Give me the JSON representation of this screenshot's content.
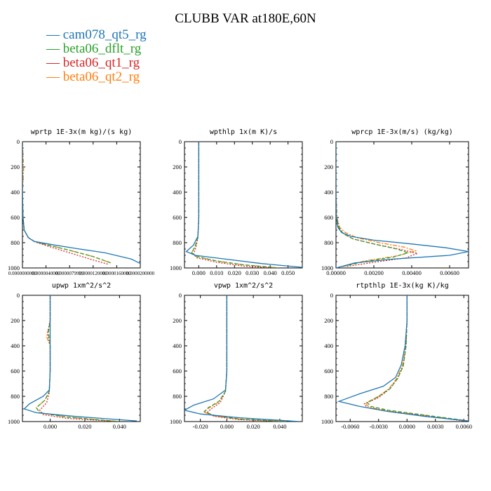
{
  "title": "CLUBB VAR at180E,60N",
  "legend": [
    {
      "name": "cam078_qt5_rg",
      "color": "#1f77b4",
      "dash": "solid"
    },
    {
      "name": "beta06_dflt_rg",
      "color": "#2ca02c",
      "dash": "dashed"
    },
    {
      "name": "beta06_qt1_rg",
      "color": "#d62728",
      "dash": "dotted"
    },
    {
      "name": "beta06_qt2_rg",
      "color": "#ff7f0e",
      "dash": "dashdot"
    }
  ],
  "chart_data": [
    {
      "type": "line",
      "title": "wprtp  1E-3x(m kg)/(s kg)",
      "xlim": [
        0,
        2e-05
      ],
      "ylim": [
        1000,
        0
      ],
      "xticks": [
        "0.0000000000",
        "0.0000040000",
        "0.0000079999",
        "0.0000120000",
        "0.0000160000",
        "0.0000200000"
      ],
      "xtick_values": [
        0,
        4e-06,
        7.9999e-06,
        1.2e-05,
        1.6e-05,
        2e-05
      ],
      "yticks": [
        0,
        200,
        400,
        600,
        800,
        1000
      ],
      "series": [
        {
          "x": [
            0,
            0,
            0,
            1e-07,
            3e-07,
            1e-06,
            2e-06,
            5e-06,
            9e-06,
            1.4e-05,
            1.85e-05,
            2e-05
          ],
          "y": [
            0,
            200,
            400,
            600,
            700,
            760,
            790,
            815,
            845,
            880,
            930,
            965
          ]
        },
        {
          "x": [
            0,
            0,
            0,
            1e-07,
            3e-07,
            1e-06,
            2e-06,
            4e-06,
            8e-06,
            1.2e-05,
            1.5e-05
          ],
          "y": [
            0,
            200,
            400,
            600,
            700,
            760,
            790,
            815,
            860,
            910,
            960
          ]
        },
        {
          "x": [
            0,
            0,
            0,
            1e-07,
            3e-07,
            1e-06,
            2.2e-06,
            4.5e-06,
            8e-06,
            1.15e-05,
            1.45e-05
          ],
          "y": [
            0,
            200,
            400,
            600,
            700,
            760,
            795,
            830,
            880,
            930,
            970
          ]
        },
        {
          "x": [
            0,
            2e-07,
            0,
            1e-07,
            3e-07,
            1e-06,
            2e-06,
            4e-06,
            8e-06,
            1.2e-05,
            1.5e-05
          ],
          "y": [
            0,
            220,
            400,
            600,
            700,
            760,
            790,
            815,
            860,
            910,
            960
          ]
        }
      ]
    },
    {
      "type": "line",
      "title": "wpthlp  1x(m K)/s",
      "xlim": [
        -0.008,
        0.058
      ],
      "ylim": [
        1000,
        0
      ],
      "xticks": [
        "0.000",
        "0.010",
        "0.020",
        "0.030",
        "0.040",
        "0.050"
      ],
      "xtick_values": [
        0,
        0.01,
        0.02,
        0.03,
        0.04,
        0.05
      ],
      "yticks": [
        0,
        200,
        400,
        600,
        800,
        1000
      ],
      "series": [
        {
          "x": [
            0,
            0,
            0,
            0,
            -0.0005,
            -0.003,
            -0.007,
            -0.002,
            0.015,
            0.035,
            0.058
          ],
          "y": [
            0,
            200,
            400,
            600,
            750,
            820,
            870,
            900,
            930,
            965,
            995
          ]
        },
        {
          "x": [
            0,
            0,
            0,
            0,
            -0.0005,
            -0.002,
            -0.004,
            -0.001,
            0.01,
            0.025,
            0.045
          ],
          "y": [
            0,
            200,
            400,
            600,
            760,
            830,
            880,
            910,
            945,
            975,
            1000
          ]
        },
        {
          "x": [
            0,
            0,
            0,
            0,
            -0.0005,
            -0.0015,
            -0.003,
            -0.001,
            0.01,
            0.025,
            0.042
          ],
          "y": [
            0,
            200,
            400,
            600,
            760,
            835,
            890,
            920,
            955,
            985,
            1000
          ]
        },
        {
          "x": [
            0,
            0,
            0,
            0,
            -0.0005,
            -0.002,
            -0.004,
            -0.001,
            0.01,
            0.025,
            0.045
          ],
          "y": [
            0,
            200,
            400,
            600,
            755,
            825,
            880,
            910,
            945,
            975,
            1000
          ]
        }
      ]
    },
    {
      "type": "line",
      "title": "wprcp  1E-3x(m/s) (kg/kg)",
      "xlim": [
        0,
        0.007
      ],
      "ylim": [
        1000,
        0
      ],
      "xticks": [
        "0.00000",
        "0.00200",
        "0.00400",
        "0.00600"
      ],
      "xtick_values": [
        0,
        0.002,
        0.004,
        0.006
      ],
      "yticks": [
        0,
        200,
        400,
        600,
        800,
        1000
      ],
      "series": [
        {
          "x": [
            0,
            0,
            0,
            2e-05,
            0.0001,
            0.0003,
            0.0008,
            0.002,
            0.004,
            0.0058,
            0.007,
            0.006,
            0.003,
            0.001,
            0
          ],
          "y": [
            0,
            200,
            400,
            600,
            680,
            720,
            750,
            780,
            810,
            840,
            870,
            900,
            930,
            960,
            1000
          ]
        },
        {
          "x": [
            0,
            0,
            0,
            3e-05,
            0.00015,
            0.0004,
            0.0009,
            0.002,
            0.0032,
            0.0038,
            0.003,
            0.0015,
            0.0003
          ],
          "y": [
            0,
            200,
            400,
            600,
            680,
            730,
            770,
            810,
            850,
            880,
            915,
            950,
            990
          ]
        },
        {
          "x": [
            0,
            0,
            0,
            3e-05,
            0.00015,
            0.0004,
            0.0009,
            0.002,
            0.0033,
            0.0043,
            0.0037,
            0.002,
            0.0005
          ],
          "y": [
            0,
            200,
            400,
            600,
            680,
            730,
            770,
            810,
            850,
            885,
            920,
            955,
            990
          ]
        },
        {
          "x": [
            0,
            0,
            0,
            5e-05,
            0.0002,
            0.0005,
            0.0011,
            0.0023,
            0.0036,
            0.0042,
            0.0032,
            0.0015,
            0.0003
          ],
          "y": [
            0,
            200,
            400,
            600,
            680,
            720,
            760,
            800,
            835,
            865,
            905,
            945,
            990
          ]
        }
      ]
    },
    {
      "type": "line",
      "title": "upwp  1xm^2/s^2",
      "xlim": [
        -0.016,
        0.052
      ],
      "ylim": [
        1000,
        0
      ],
      "xticks": [
        "0.000",
        "0.020",
        "0.040"
      ],
      "xtick_values": [
        0,
        0.02,
        0.04
      ],
      "yticks": [
        0,
        200,
        400,
        600,
        800,
        1000
      ],
      "series": [
        {
          "x": [
            0,
            0,
            0,
            0,
            -0.0005,
            -0.004,
            -0.012,
            -0.015,
            -0.008,
            0.015,
            0.05
          ],
          "y": [
            0,
            200,
            400,
            600,
            750,
            800,
            860,
            900,
            930,
            960,
            995
          ]
        },
        {
          "x": [
            0,
            0,
            -0.001,
            0,
            0,
            -0.0005,
            -0.003,
            -0.008,
            -0.006,
            0.01,
            0.04
          ],
          "y": [
            0,
            200,
            290,
            400,
            600,
            760,
            830,
            890,
            930,
            965,
            1000
          ]
        },
        {
          "x": [
            0,
            0,
            -0.0015,
            0,
            0,
            -0.0005,
            -0.002,
            -0.006,
            -0.004,
            0.01,
            0.04
          ],
          "y": [
            0,
            200,
            300,
            400,
            600,
            770,
            850,
            910,
            945,
            975,
            1000
          ]
        },
        {
          "x": [
            0,
            0,
            -0.002,
            0,
            0,
            -0.0005,
            -0.003,
            -0.008,
            -0.006,
            0.01,
            0.04
          ],
          "y": [
            0,
            200,
            330,
            400,
            600,
            760,
            830,
            890,
            930,
            965,
            1000
          ]
        }
      ]
    },
    {
      "type": "line",
      "title": "vpwp  1xm^2/s^2",
      "xlim": [
        -0.032,
        0.057
      ],
      "ylim": [
        1000,
        0
      ],
      "xticks": [
        "-0.020",
        "0.000",
        "0.020",
        "0.040"
      ],
      "xtick_values": [
        -0.02,
        0,
        0.02,
        0.04
      ],
      "yticks": [
        0,
        200,
        400,
        600,
        800,
        1000
      ],
      "series": [
        {
          "x": [
            0,
            0,
            0,
            0,
            -0.001,
            -0.01,
            -0.025,
            -0.032,
            -0.02,
            0.01,
            0.055
          ],
          "y": [
            0,
            200,
            400,
            600,
            750,
            820,
            870,
            910,
            940,
            970,
            1000
          ]
        },
        {
          "x": [
            0,
            0,
            0,
            0,
            -0.001,
            -0.006,
            -0.014,
            -0.017,
            -0.01,
            0.01,
            0.045
          ],
          "y": [
            0,
            200,
            400,
            600,
            760,
            840,
            890,
            920,
            950,
            980,
            1000
          ]
        },
        {
          "x": [
            0,
            0,
            0,
            0,
            -0.001,
            -0.005,
            -0.012,
            -0.015,
            -0.009,
            0.01,
            0.045
          ],
          "y": [
            0,
            200,
            400,
            600,
            760,
            850,
            900,
            930,
            960,
            985,
            1000
          ]
        },
        {
          "x": [
            0,
            0,
            0,
            0,
            -0.001,
            -0.006,
            -0.014,
            -0.017,
            -0.01,
            0.01,
            0.045
          ],
          "y": [
            0,
            200,
            400,
            600,
            760,
            845,
            895,
            925,
            955,
            982,
            1000
          ]
        }
      ]
    },
    {
      "type": "line",
      "title": "rtpthlp  1E-3x(kg K)/kg",
      "xlim": [
        -0.0075,
        0.0065
      ],
      "ylim": [
        1000,
        0
      ],
      "xticks": [
        "-0.0060",
        "-0.0030",
        "0.0000",
        "0.0030",
        "0.0060"
      ],
      "xtick_values": [
        -0.006,
        -0.003,
        0,
        0.003,
        0.006
      ],
      "yticks": [
        0,
        200,
        400,
        600,
        800,
        1000
      ],
      "series": [
        {
          "x": [
            0,
            0,
            -0.0002,
            -0.0006,
            -0.0012,
            -0.0025,
            -0.005,
            -0.0072,
            -0.005,
            -0.002,
            0.002,
            0.0065
          ],
          "y": [
            0,
            200,
            400,
            550,
            650,
            720,
            780,
            840,
            880,
            920,
            960,
            995
          ]
        },
        {
          "x": [
            0,
            0,
            -0.0001,
            -0.0004,
            -0.001,
            -0.0018,
            -0.003,
            -0.0042,
            -0.0038,
            -0.002,
            0.002,
            0.006
          ],
          "y": [
            0,
            200,
            400,
            560,
            660,
            740,
            800,
            850,
            880,
            910,
            950,
            990
          ]
        },
        {
          "x": [
            0,
            0,
            -0.0001,
            -0.0004,
            -0.001,
            -0.0018,
            -0.003,
            -0.0045,
            -0.0042,
            -0.002,
            0.002,
            0.006
          ],
          "y": [
            0,
            200,
            400,
            560,
            660,
            740,
            810,
            860,
            890,
            920,
            955,
            995
          ]
        },
        {
          "x": [
            0,
            0,
            -0.0001,
            -0.0005,
            -0.0011,
            -0.0019,
            -0.0031,
            -0.0044,
            -0.004,
            -0.002,
            0.002,
            0.006
          ],
          "y": [
            0,
            200,
            400,
            560,
            660,
            740,
            805,
            855,
            885,
            915,
            952,
            992
          ]
        }
      ]
    }
  ]
}
